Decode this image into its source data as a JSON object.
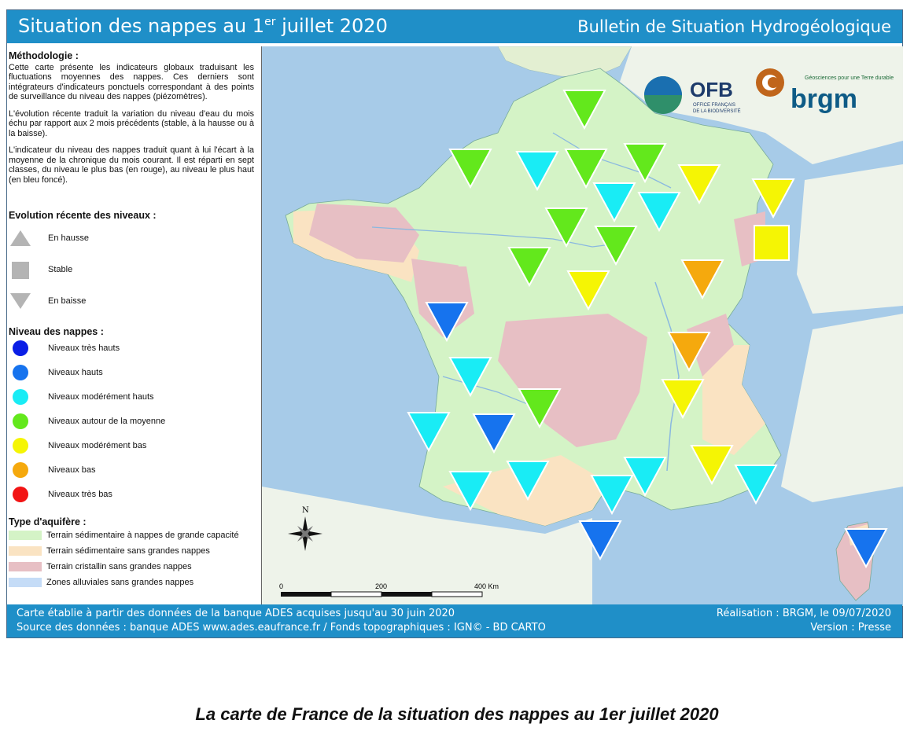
{
  "header": {
    "title_main": "Situation des nappes au 1",
    "title_sup": "er",
    "title_end": " juillet 2020",
    "title_right": "Bulletin de Situation Hydrogéologique"
  },
  "methodology": {
    "heading": "Méthodologie :",
    "p1": "Cette carte présente les indicateurs globaux traduisant les fluctuations moyennes des nappes. Ces derniers sont intégrateurs d'indicateurs ponctuels correspondant à des points de surveillance du niveau des nappes (piézomètres).",
    "p2": "L'évolution récente traduit la variation du niveau d'eau du mois échu par rapport aux 2 mois précédents (stable, à la hausse ou à la baisse).",
    "p3": "L'indicateur du niveau des nappes traduit quant à lui l'écart à la moyenne de la chronique du mois courant. Il est réparti en sept classes, du niveau le plus bas (en rouge), au niveau le plus haut (en bleu foncé)."
  },
  "evolution": {
    "heading": "Evolution récente des niveaux :",
    "items": [
      "En hausse",
      "Stable",
      "En baisse"
    ]
  },
  "levels": {
    "heading": "Niveau des nappes :",
    "items": [
      {
        "label": "Niveaux très hauts",
        "color": "#0a1ee6"
      },
      {
        "label": "Niveaux hauts",
        "color": "#1673ee"
      },
      {
        "label": "Niveaux modérément hauts",
        "color": "#19ecf5"
      },
      {
        "label": "Niveaux autour de la moyenne",
        "color": "#63e81c"
      },
      {
        "label": "Niveaux modérément bas",
        "color": "#f5f504"
      },
      {
        "label": "Niveaux bas",
        "color": "#f5a90d"
      },
      {
        "label": "Niveaux très bas",
        "color": "#f21414"
      }
    ]
  },
  "aquifer": {
    "heading": "Type d'aquifère :",
    "items": [
      {
        "label": "Terrain sédimentaire à nappes de grande capacité",
        "color": "#d4f3c6"
      },
      {
        "label": "Terrain sédimentaire sans grandes nappes",
        "color": "#fae3c2"
      },
      {
        "label": "Terrain cristallin sans grandes nappes",
        "color": "#e7bfc4"
      },
      {
        "label": "Zones alluviales sans grandes nappes",
        "color": "#c5dcf7"
      }
    ]
  },
  "map": {
    "north_label": "N",
    "scale_labels": [
      "0",
      "200",
      "400 Km"
    ],
    "logo_ofb": "OFB",
    "logo_ofb_sub1": "OFFICE FRANÇAIS",
    "logo_ofb_sub2": "DE LA BIODIVERSITÉ",
    "logo_brgm": "brgm",
    "logo_brgm_tagline": "Géosciences pour une Terre durable"
  },
  "footer": {
    "line1": "Carte établie à partir des données de la banque ADES acquises jusqu'au 30 juin 2020",
    "line2": "Source des données : banque ADES www.ades.eaufrance.fr / Fonds topographiques : IGN© - BD CARTO",
    "right1": "Réalisation : BRGM, le 09/07/2020",
    "right2": "Version : Presse"
  },
  "caption": "La carte de France de la situation des nappes au 1er juillet 2020"
}
